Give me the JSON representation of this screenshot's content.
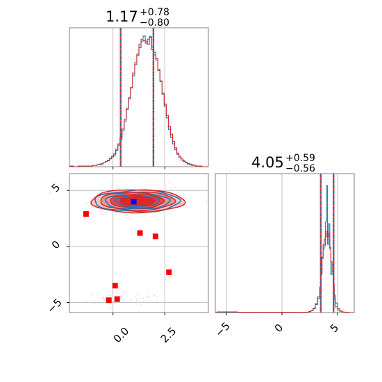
{
  "colors": {
    "blue": "#1f77b4",
    "red": "#d62728",
    "marker_red": "#ff0000",
    "marker_blue": "#0000ff",
    "grid": "#b0b0b0",
    "axes": "#808080"
  },
  "chart_data": [
    {
      "type": "histogram",
      "panel": "marginal-x",
      "title": {
        "value": "1.17",
        "plus": "+0.78",
        "minus": "−0.80"
      },
      "xlim": [
        -2.1,
        4.6
      ],
      "quantile_lines": [
        0.37,
        1.17,
        1.95
      ],
      "series": [
        {
          "color": "#1f77b4",
          "bin_edges": [
            -2.1,
            4.6
          ],
          "counts": [
            0,
            0,
            0,
            0,
            0,
            1,
            1,
            1,
            1,
            1,
            1,
            2,
            2,
            3,
            3,
            4,
            6,
            8,
            9,
            12,
            15,
            18,
            25,
            33,
            42,
            55,
            70,
            88,
            104,
            121,
            140,
            157,
            171,
            183,
            196,
            201,
            190,
            196,
            200,
            184,
            176,
            164,
            150,
            132,
            111,
            93,
            75,
            57,
            45,
            35,
            26,
            19,
            14,
            10,
            8,
            6,
            4,
            3,
            2,
            2,
            1,
            1,
            1,
            0,
            0,
            0
          ]
        },
        {
          "color": "#d62728",
          "bin_edges": [
            -2.1,
            4.6
          ],
          "counts": [
            1,
            1,
            0,
            0,
            1,
            1,
            1,
            1,
            1,
            1,
            1,
            2,
            2,
            3,
            4,
            5,
            6,
            8,
            10,
            13,
            16,
            20,
            27,
            35,
            45,
            58,
            73,
            90,
            106,
            122,
            144,
            160,
            173,
            188,
            193,
            194,
            193,
            188,
            199,
            180,
            172,
            166,
            148,
            131,
            113,
            96,
            79,
            62,
            50,
            39,
            29,
            21,
            16,
            12,
            9,
            7,
            5,
            4,
            3,
            2,
            1,
            1,
            0,
            0,
            0,
            0
          ]
        }
      ]
    },
    {
      "type": "scatter",
      "panel": "joint",
      "xlim": [
        -2.1,
        4.6
      ],
      "ylim": [
        -5.9,
        6.5
      ],
      "xticks": [
        "0.0",
        "2.5"
      ],
      "yticks": [
        "5",
        "0",
        "−5"
      ],
      "blobs": [
        {
          "cx": 1.17,
          "cy": 4.05,
          "sx": 1.0,
          "sy": 0.55
        },
        {
          "cx": 0.4,
          "cy": -4.7,
          "sx": 1.1,
          "sy": 0.35
        }
      ],
      "contours": {
        "center": [
          1.17,
          4.05
        ],
        "blue_levels": [
          [
            2.05,
            0.95
          ],
          [
            1.55,
            0.72
          ],
          [
            1.05,
            0.5
          ]
        ],
        "red_levels": [
          [
            2.25,
            1.02
          ],
          [
            1.8,
            0.82
          ],
          [
            1.3,
            0.62
          ],
          [
            0.85,
            0.42
          ]
        ]
      },
      "red_squares": [
        [
          -1.3,
          2.9
        ],
        [
          1.3,
          1.2
        ],
        [
          2.05,
          0.9
        ],
        [
          2.7,
          -2.3
        ],
        [
          0.1,
          -3.5
        ],
        [
          -0.2,
          -4.8
        ],
        [
          0.2,
          -4.7
        ]
      ],
      "blue_square": [
        1.0,
        4.0
      ]
    },
    {
      "type": "histogram",
      "panel": "marginal-y",
      "title": {
        "value": "4.05",
        "plus": "+0.59",
        "minus": "−0.56"
      },
      "xlim": [
        -6.0,
        6.5
      ],
      "xticks": [
        "−5",
        "0",
        "5"
      ],
      "quantile_lines": [
        3.49,
        4.05,
        4.64
      ],
      "series": [
        {
          "color": "#1f77b4",
          "x": [
            2.2,
            2.4,
            2.6,
            2.8,
            3.0,
            3.2,
            3.4,
            3.5,
            3.6,
            3.7,
            3.8,
            3.9,
            4.0,
            4.1,
            4.2,
            4.3,
            4.4,
            4.5,
            4.6,
            4.7,
            4.8,
            5.0,
            5.2,
            5.4,
            5.6,
            5.8,
            6.0
          ],
          "counts": [
            1,
            3,
            6,
            12,
            25,
            45,
            75,
            120,
            170,
            200,
            210,
            285,
            400,
            215,
            280,
            205,
            120,
            150,
            80,
            40,
            18,
            8,
            4,
            2,
            1,
            1,
            0
          ]
        },
        {
          "color": "#d62728",
          "x": [
            -5.8,
            -5.0,
            -4.0,
            2.2,
            2.4,
            2.6,
            2.8,
            3.0,
            3.2,
            3.4,
            3.5,
            3.6,
            3.7,
            3.8,
            3.9,
            4.0,
            4.1,
            4.2,
            4.3,
            4.4,
            4.5,
            4.6,
            4.7,
            4.8,
            5.0,
            5.2,
            5.4,
            5.6,
            5.8
          ],
          "counts": [
            2,
            2,
            1,
            1,
            3,
            7,
            14,
            28,
            50,
            80,
            125,
            175,
            215,
            230,
            240,
            255,
            240,
            250,
            200,
            160,
            130,
            90,
            55,
            30,
            12,
            5,
            2,
            1,
            0
          ]
        }
      ]
    }
  ]
}
